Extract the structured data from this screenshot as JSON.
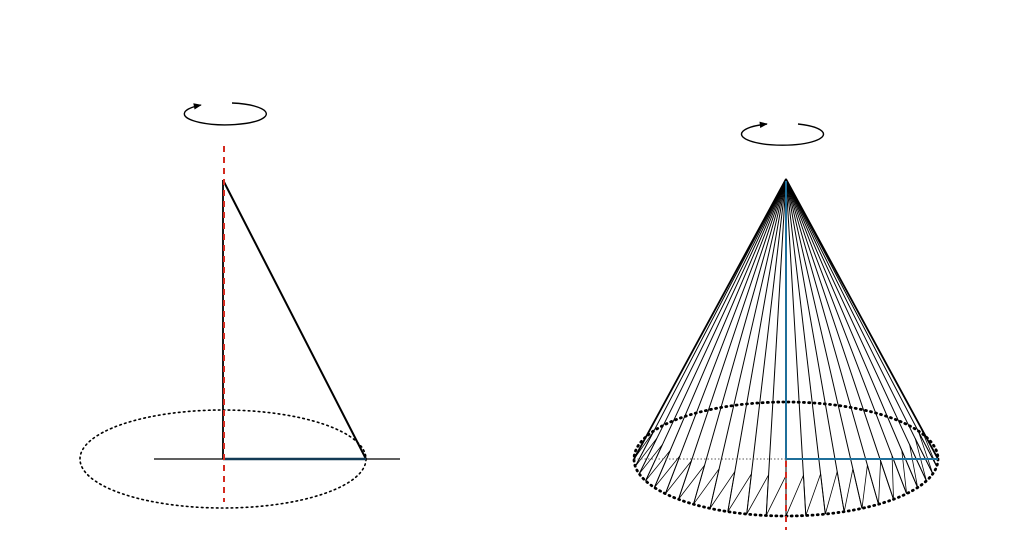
{
  "figure": {
    "panels": [
      {
        "id": "triangle-revolution",
        "rotation_direction": "counter-clockwise"
      },
      {
        "id": "cone-of-revolution",
        "rotation_direction": "clockwise",
        "generator_count": 24
      }
    ]
  },
  "colors": {
    "line": "#000000",
    "axis": "#d42a1f",
    "radius": "#1f6f9a",
    "radius_dark": "#123a55",
    "background": "#ffffff"
  }
}
